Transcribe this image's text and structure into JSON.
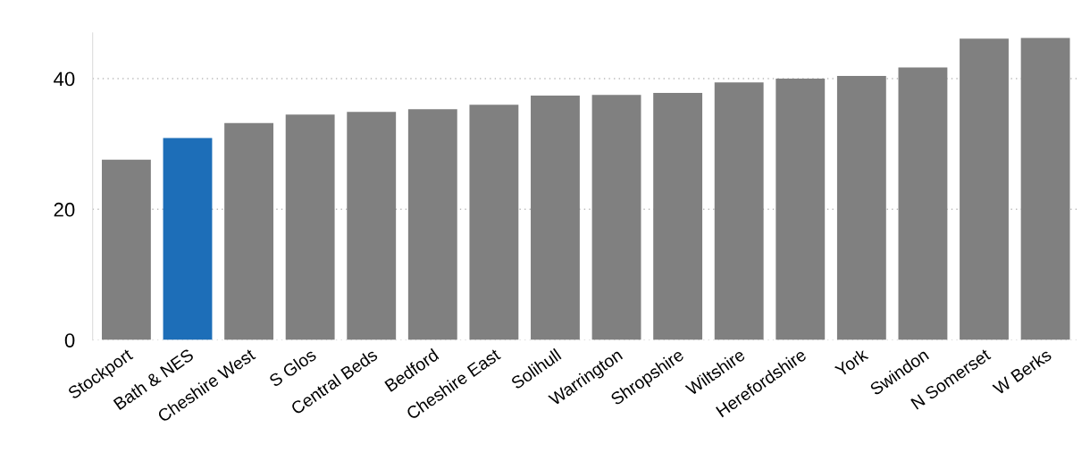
{
  "chart_data": {
    "type": "bar",
    "categories": [
      "Stockport",
      "Bath & NES",
      "Cheshire West",
      "S Glos",
      "Central Beds",
      "Bedford",
      "Cheshire East",
      "Solihull",
      "Warrington",
      "Shropshire",
      "Wiltshire",
      "Herefordshire",
      "York",
      "Swindon",
      "N Somerset",
      "W Berks"
    ],
    "values": [
      27.6,
      30.9,
      33.2,
      34.5,
      34.9,
      35.3,
      36.0,
      37.4,
      37.5,
      37.8,
      39.4,
      40.0,
      40.4,
      41.7,
      46.1,
      46.2
    ],
    "colors": [
      "#808080",
      "#1d6eb8",
      "#808080",
      "#808080",
      "#808080",
      "#808080",
      "#808080",
      "#808080",
      "#808080",
      "#808080",
      "#808080",
      "#808080",
      "#808080",
      "#808080",
      "#808080",
      "#808080"
    ],
    "ylim": [
      0,
      47
    ],
    "yticks": [
      0,
      20,
      40
    ],
    "grid": "y"
  }
}
